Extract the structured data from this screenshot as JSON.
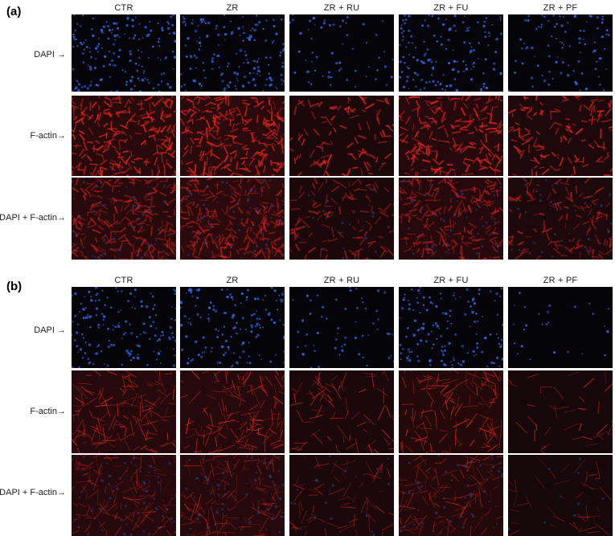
{
  "panels": [
    {
      "label": "(a)",
      "columns": [
        "CTR",
        "ZR",
        "ZR + RU",
        "ZR + FU",
        "ZR + PF"
      ],
      "rows": [
        "DAPI →",
        "F-actin→",
        "DAPI + F-actin→"
      ]
    },
    {
      "label": "(b)",
      "columns": [
        "CTR",
        "ZR",
        "ZR + RU",
        "ZR + FU",
        "ZR + PF"
      ],
      "rows": [
        "DAPI →",
        "F-actin→",
        "DAPI + F-actin→"
      ]
    }
  ],
  "colors": {
    "dapi": "#2f5fd6",
    "factin": "#e0241f",
    "background": "#050509"
  }
}
